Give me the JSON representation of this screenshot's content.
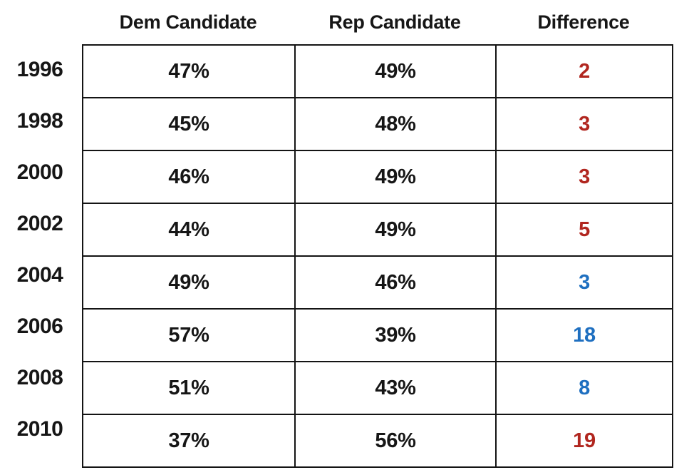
{
  "colors": {
    "red": "#b1261f",
    "blue": "#1e6fc0",
    "text": "#161616",
    "border": "#141414"
  },
  "table": {
    "headers": [
      {
        "label": "Dem Candidate"
      },
      {
        "label": "Rep Candidate"
      },
      {
        "label": "Difference"
      }
    ],
    "rows": [
      {
        "year": "1996",
        "dem": "47%",
        "rep": "49%",
        "diff": "2",
        "diff_color": "red"
      },
      {
        "year": "1998",
        "dem": "45%",
        "rep": "48%",
        "diff": "3",
        "diff_color": "red"
      },
      {
        "year": "2000",
        "dem": "46%",
        "rep": "49%",
        "diff": "3",
        "diff_color": "red"
      },
      {
        "year": "2002",
        "dem": "44%",
        "rep": "49%",
        "diff": "5",
        "diff_color": "red"
      },
      {
        "year": "2004",
        "dem": "49%",
        "rep": "46%",
        "diff": "3",
        "diff_color": "blue"
      },
      {
        "year": "2006",
        "dem": "57%",
        "rep": "39%",
        "diff": "18",
        "diff_color": "blue"
      },
      {
        "year": "2008",
        "dem": "51%",
        "rep": "43%",
        "diff": "8",
        "diff_color": "blue"
      },
      {
        "year": "2010",
        "dem": "37%",
        "rep": "56%",
        "diff": "19",
        "diff_color": "red"
      }
    ]
  },
  "chart_data": {
    "type": "table",
    "categories": [
      "1996",
      "1998",
      "2000",
      "2002",
      "2004",
      "2006",
      "2008",
      "2010"
    ],
    "series": [
      {
        "name": "Dem Candidate",
        "unit": "%",
        "values": [
          47,
          45,
          46,
          44,
          49,
          57,
          51,
          37
        ]
      },
      {
        "name": "Rep Candidate",
        "unit": "%",
        "values": [
          49,
          48,
          49,
          49,
          46,
          39,
          43,
          56
        ]
      },
      {
        "name": "Difference",
        "values": [
          2,
          3,
          3,
          5,
          3,
          18,
          8,
          19
        ],
        "value_colors": [
          "red",
          "red",
          "red",
          "red",
          "blue",
          "blue",
          "blue",
          "red"
        ]
      }
    ],
    "layout": "rows are years; Dem/Rep columns show vote share; Difference colored red when Rep leads, blue when Dem leads"
  }
}
